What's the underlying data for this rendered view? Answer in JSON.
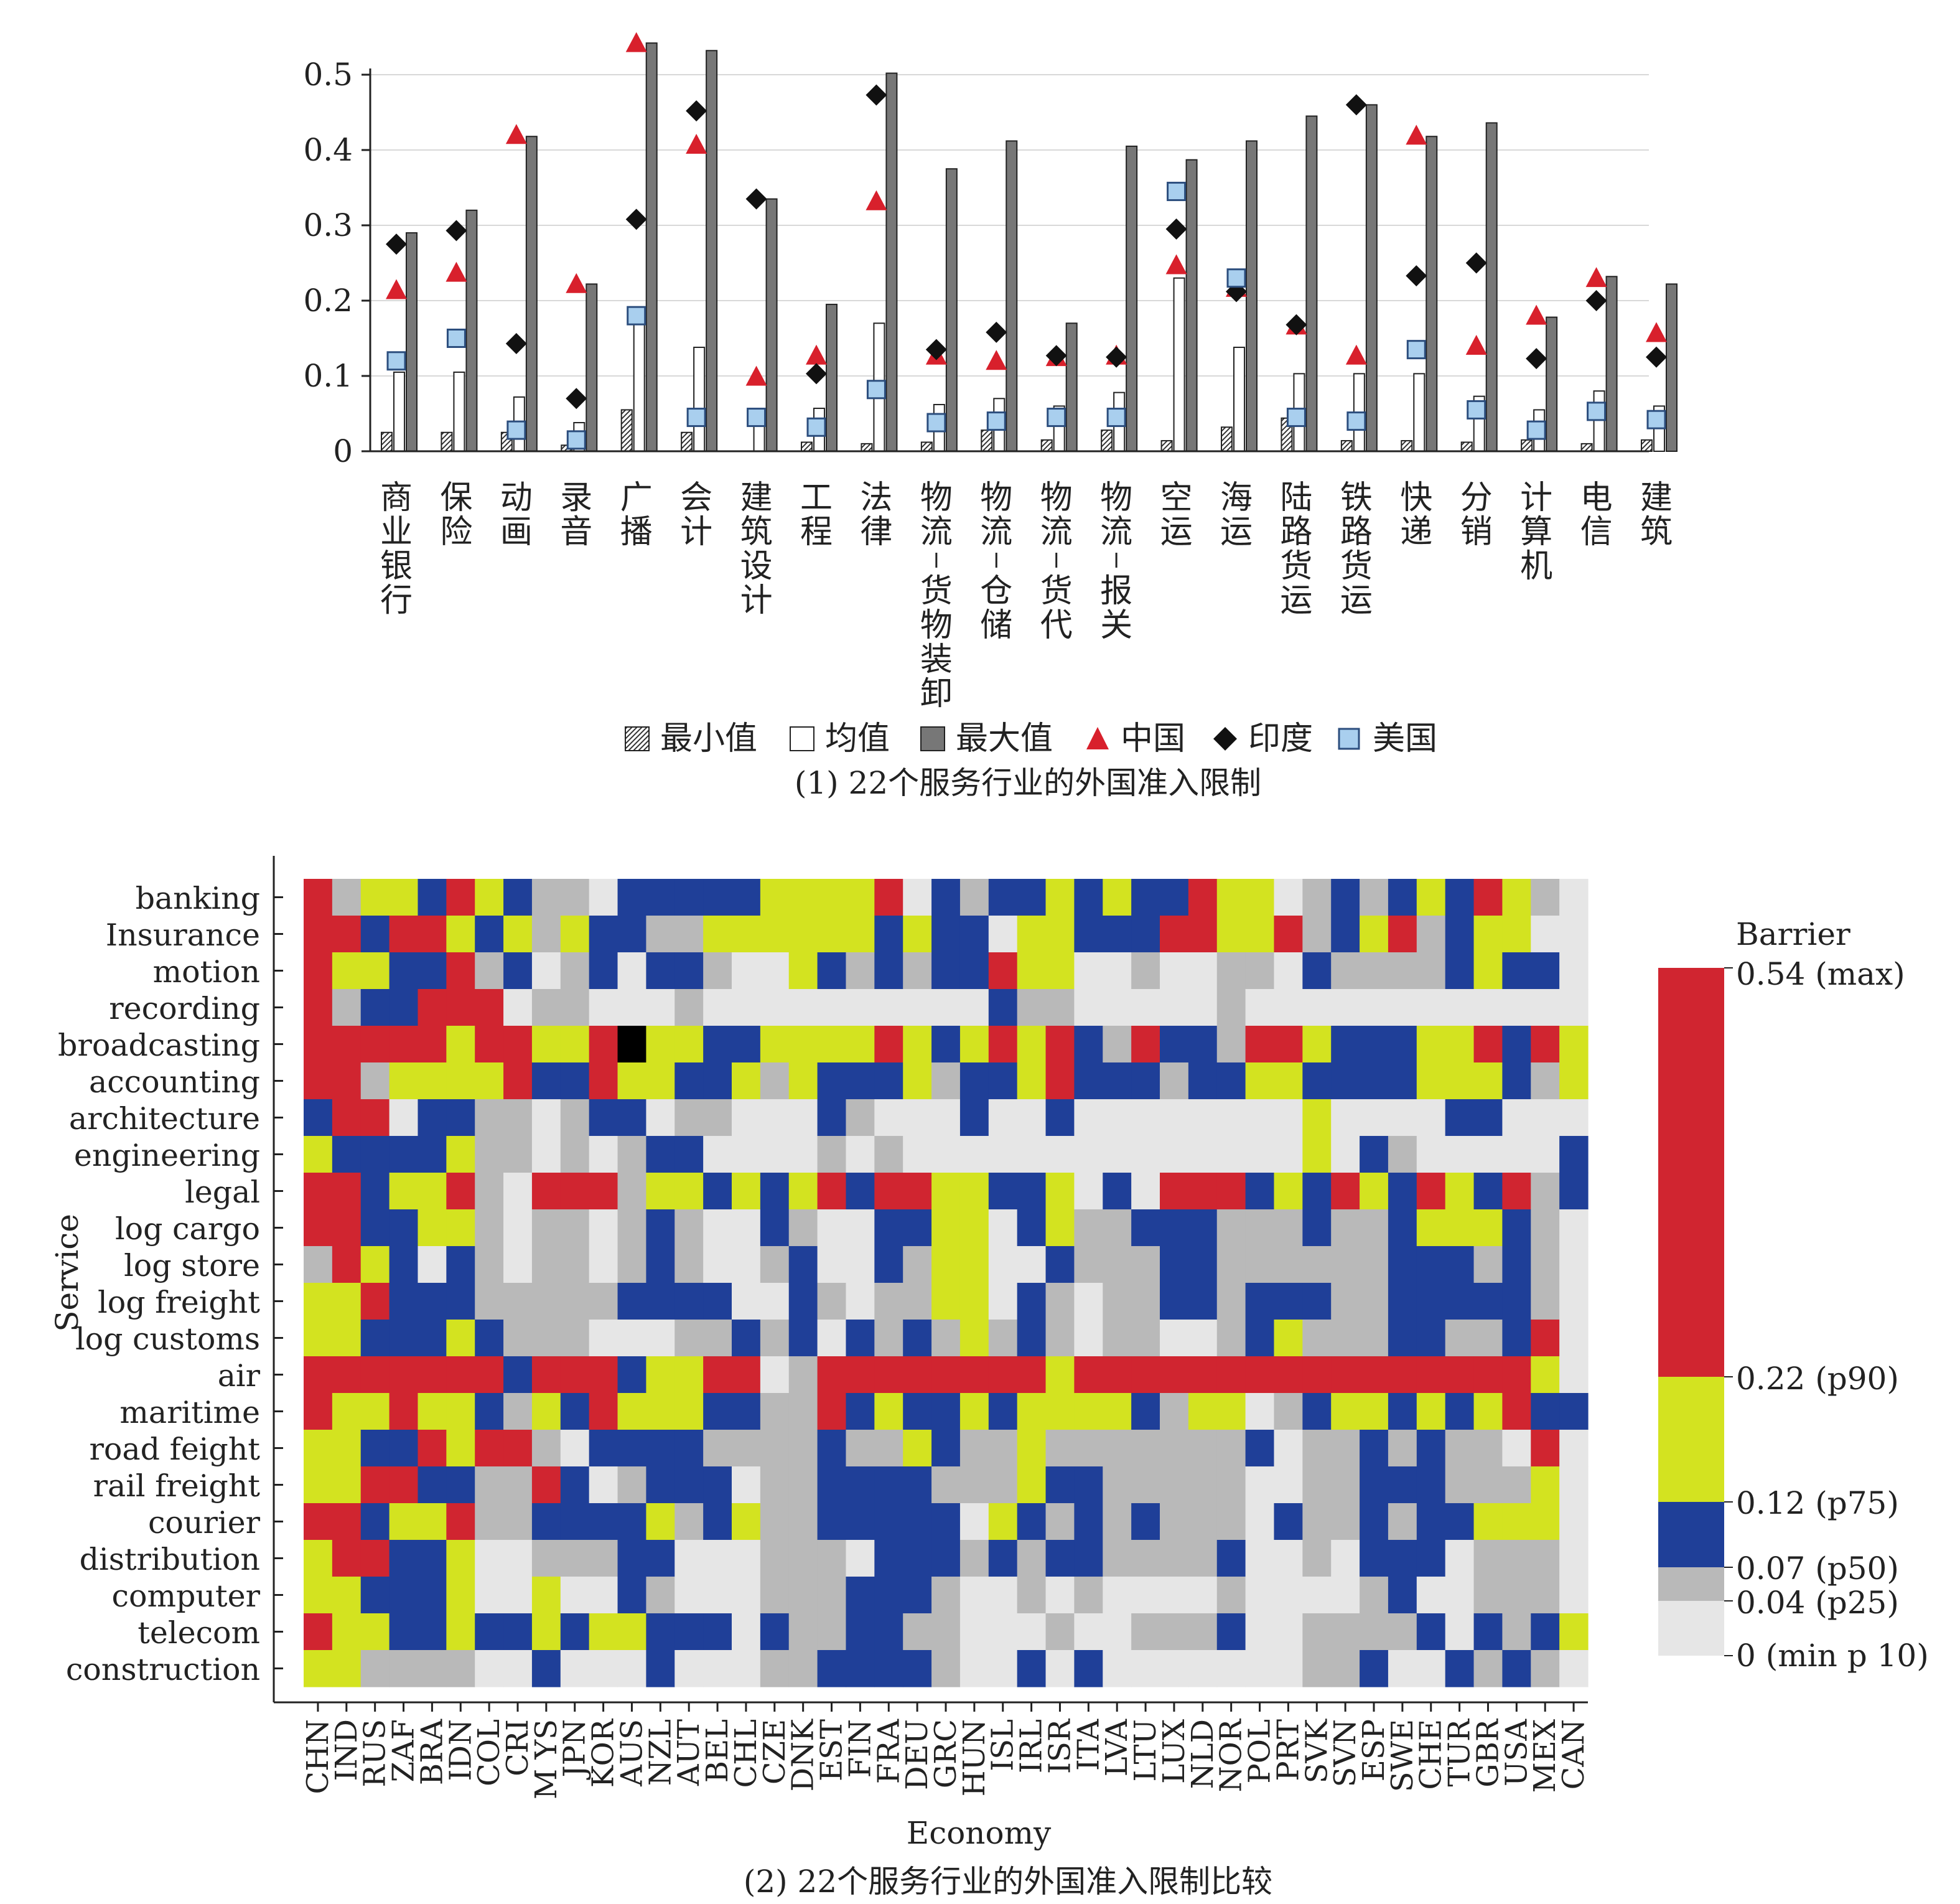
{
  "colors": {
    "min_fill": "#ffffff",
    "mean_fill": "#ffffff",
    "max_fill": "#777777",
    "china": "#d8202c",
    "india": "#111111",
    "usa": "#a9cfee",
    "heat_low": "#e6e6e6",
    "heat_p25": "#b9b9b9",
    "heat_p50": "#1f3f98",
    "heat_p75": "#d3e320",
    "heat_p90": "#d02530"
  },
  "chart_data": [
    {
      "type": "bar",
      "title": "(1) 22个服务行业的外国准入限制",
      "categories": [
        "商业银行",
        "保险",
        "动画",
        "录音",
        "广播",
        "会计",
        "建筑设计",
        "工程",
        "法律",
        "物流-货物装卸",
        "物流-仓储",
        "物流-货代",
        "物流-报关",
        "空运",
        "海运",
        "陆路货运",
        "铁路货运",
        "快递",
        "分销",
        "计算机",
        "电信",
        "建筑"
      ],
      "ylim": [
        0,
        0.5
      ],
      "yticks": [
        0,
        0.1,
        0.2,
        0.3,
        0.4,
        0.5
      ],
      "ytick_labels": [
        "0",
        "0.1",
        "0.2",
        "0.3",
        "0.4",
        "0.5"
      ],
      "grid": true,
      "legend": [
        {
          "key": "min",
          "label": "最小值"
        },
        {
          "key": "mean",
          "label": "均值"
        },
        {
          "key": "max",
          "label": "最大值"
        },
        {
          "key": "china",
          "label": "中国"
        },
        {
          "key": "india",
          "label": "印度"
        },
        {
          "key": "usa",
          "label": "美国"
        }
      ],
      "series": [
        {
          "key": "min",
          "values": [
            0.025,
            0.025,
            0.025,
            0.008,
            0.055,
            0.025,
            0.0,
            0.012,
            0.01,
            0.012,
            0.028,
            0.015,
            0.028,
            0.014,
            0.032,
            0.044,
            0.014,
            0.014,
            0.012,
            0.015,
            0.01,
            0.015
          ]
        },
        {
          "key": "mean",
          "values": [
            0.105,
            0.105,
            0.072,
            0.038,
            0.18,
            0.138,
            0.045,
            0.057,
            0.17,
            0.062,
            0.07,
            0.06,
            0.078,
            0.23,
            0.138,
            0.103,
            0.103,
            0.103,
            0.073,
            0.055,
            0.08,
            0.06
          ]
        },
        {
          "key": "max",
          "values": [
            0.29,
            0.32,
            0.418,
            0.222,
            0.542,
            0.532,
            0.335,
            0.195,
            0.502,
            0.375,
            0.412,
            0.17,
            0.405,
            0.387,
            0.412,
            0.445,
            0.46,
            0.418,
            0.436,
            0.178,
            0.232,
            0.222
          ]
        },
        {
          "key": "china",
          "values": [
            0.212,
            0.235,
            0.418,
            0.22,
            0.54,
            0.405,
            0.097,
            0.125,
            0.33,
            0.125,
            0.118,
            0.123,
            0.125,
            0.245,
            0.215,
            0.165,
            0.125,
            0.417,
            0.138,
            0.178,
            0.228,
            0.155
          ]
        },
        {
          "key": "india",
          "values": [
            0.275,
            0.293,
            0.143,
            0.07,
            0.308,
            0.452,
            0.335,
            0.103,
            0.473,
            0.135,
            0.158,
            0.127,
            0.125,
            0.295,
            0.212,
            0.168,
            0.46,
            0.233,
            0.25,
            0.123,
            0.2,
            0.125
          ]
        },
        {
          "key": "usa",
          "values": [
            0.12,
            0.15,
            0.028,
            0.015,
            0.18,
            0.045,
            0.045,
            0.032,
            0.082,
            0.038,
            0.04,
            0.045,
            0.045,
            0.345,
            0.23,
            0.045,
            0.04,
            0.135,
            0.055,
            0.028,
            0.053,
            0.042
          ]
        }
      ]
    },
    {
      "type": "heatmap",
      "title": "(2) 22个服务行业的外国准入限制比较",
      "xlabel": "Economy",
      "ylabel": "Service",
      "rows": [
        "banking",
        "Insurance",
        "motion",
        "recording",
        "broadcasting",
        "accounting",
        "architecture",
        "engineering",
        "legal",
        "log cargo",
        "log store",
        "log freight",
        "log customs",
        "air",
        "maritime",
        "road feight",
        "rail freight",
        "courier",
        "distribution",
        "computer",
        "telecom",
        "construction"
      ],
      "columns": [
        "CHN",
        "IND",
        "RUS",
        "ZAF",
        "BRA",
        "IDN",
        "COL",
        "CRI",
        "M YS",
        "JPN",
        "KOR",
        "AUS",
        "NZL",
        "AUT",
        "BEL",
        "CHL",
        "CZE",
        "DNK",
        "EST",
        "FIN",
        "FRA",
        "DEU",
        "GRC",
        "HUN",
        "ISL",
        "IRL",
        "ISR",
        "ITA",
        "LVA",
        "LTU",
        "LUX",
        "NLD",
        "NOR",
        "POL",
        "PRT",
        "SVK",
        "SVN",
        "ESP",
        "SWE",
        "CHE",
        "TUR",
        "GBR",
        "USA",
        "MEX",
        "CAN"
      ],
      "value_levels": [
        "0 (min p 10)",
        "0.04 (p25)",
        "0.07 (p50)",
        "0.12 (p75)",
        "0.22 (p90)",
        "0.54 (max)"
      ],
      "cells": [
        "413324321102222233334021223232243301212324310",
        "442443231322113333332322033222443341234123300",
        "433224120120221003212122433001001102111123220",
        "412244401100010000000000211000001000000000000",
        "444443443345332233334323434214221443222334243",
        "441333342243322313222312234222122332222333213",
        "244022110122011000210002002000000003000022000",
        "322223110101220000101000000000000003021000002",
        "442334104441332323424433223020444232432432412",
        "442233101101210021002233023112221112112333210",
        "143202101101210012002133002111221111112221210",
        "334222111112222002101133021011221222112222210",
        "332223211100011212021213121011001231112211240",
        "444444424442334401444444443444444444444444430",
        "433433213243332211423223233332133012332323422",
        "332243441022221111211321131111111201121211040",
        "334422114201222011222211132211111001122211130",
        "442334112222312311222220321212111021121223330",
        "344223001112200011102221212211112001022201110",
        "332223003002100011122210010100001000012001110",
        "433223223233222021122110001001112001111202123",
        "331111002000200011222210020200000001120021210"
      ]
    }
  ]
}
